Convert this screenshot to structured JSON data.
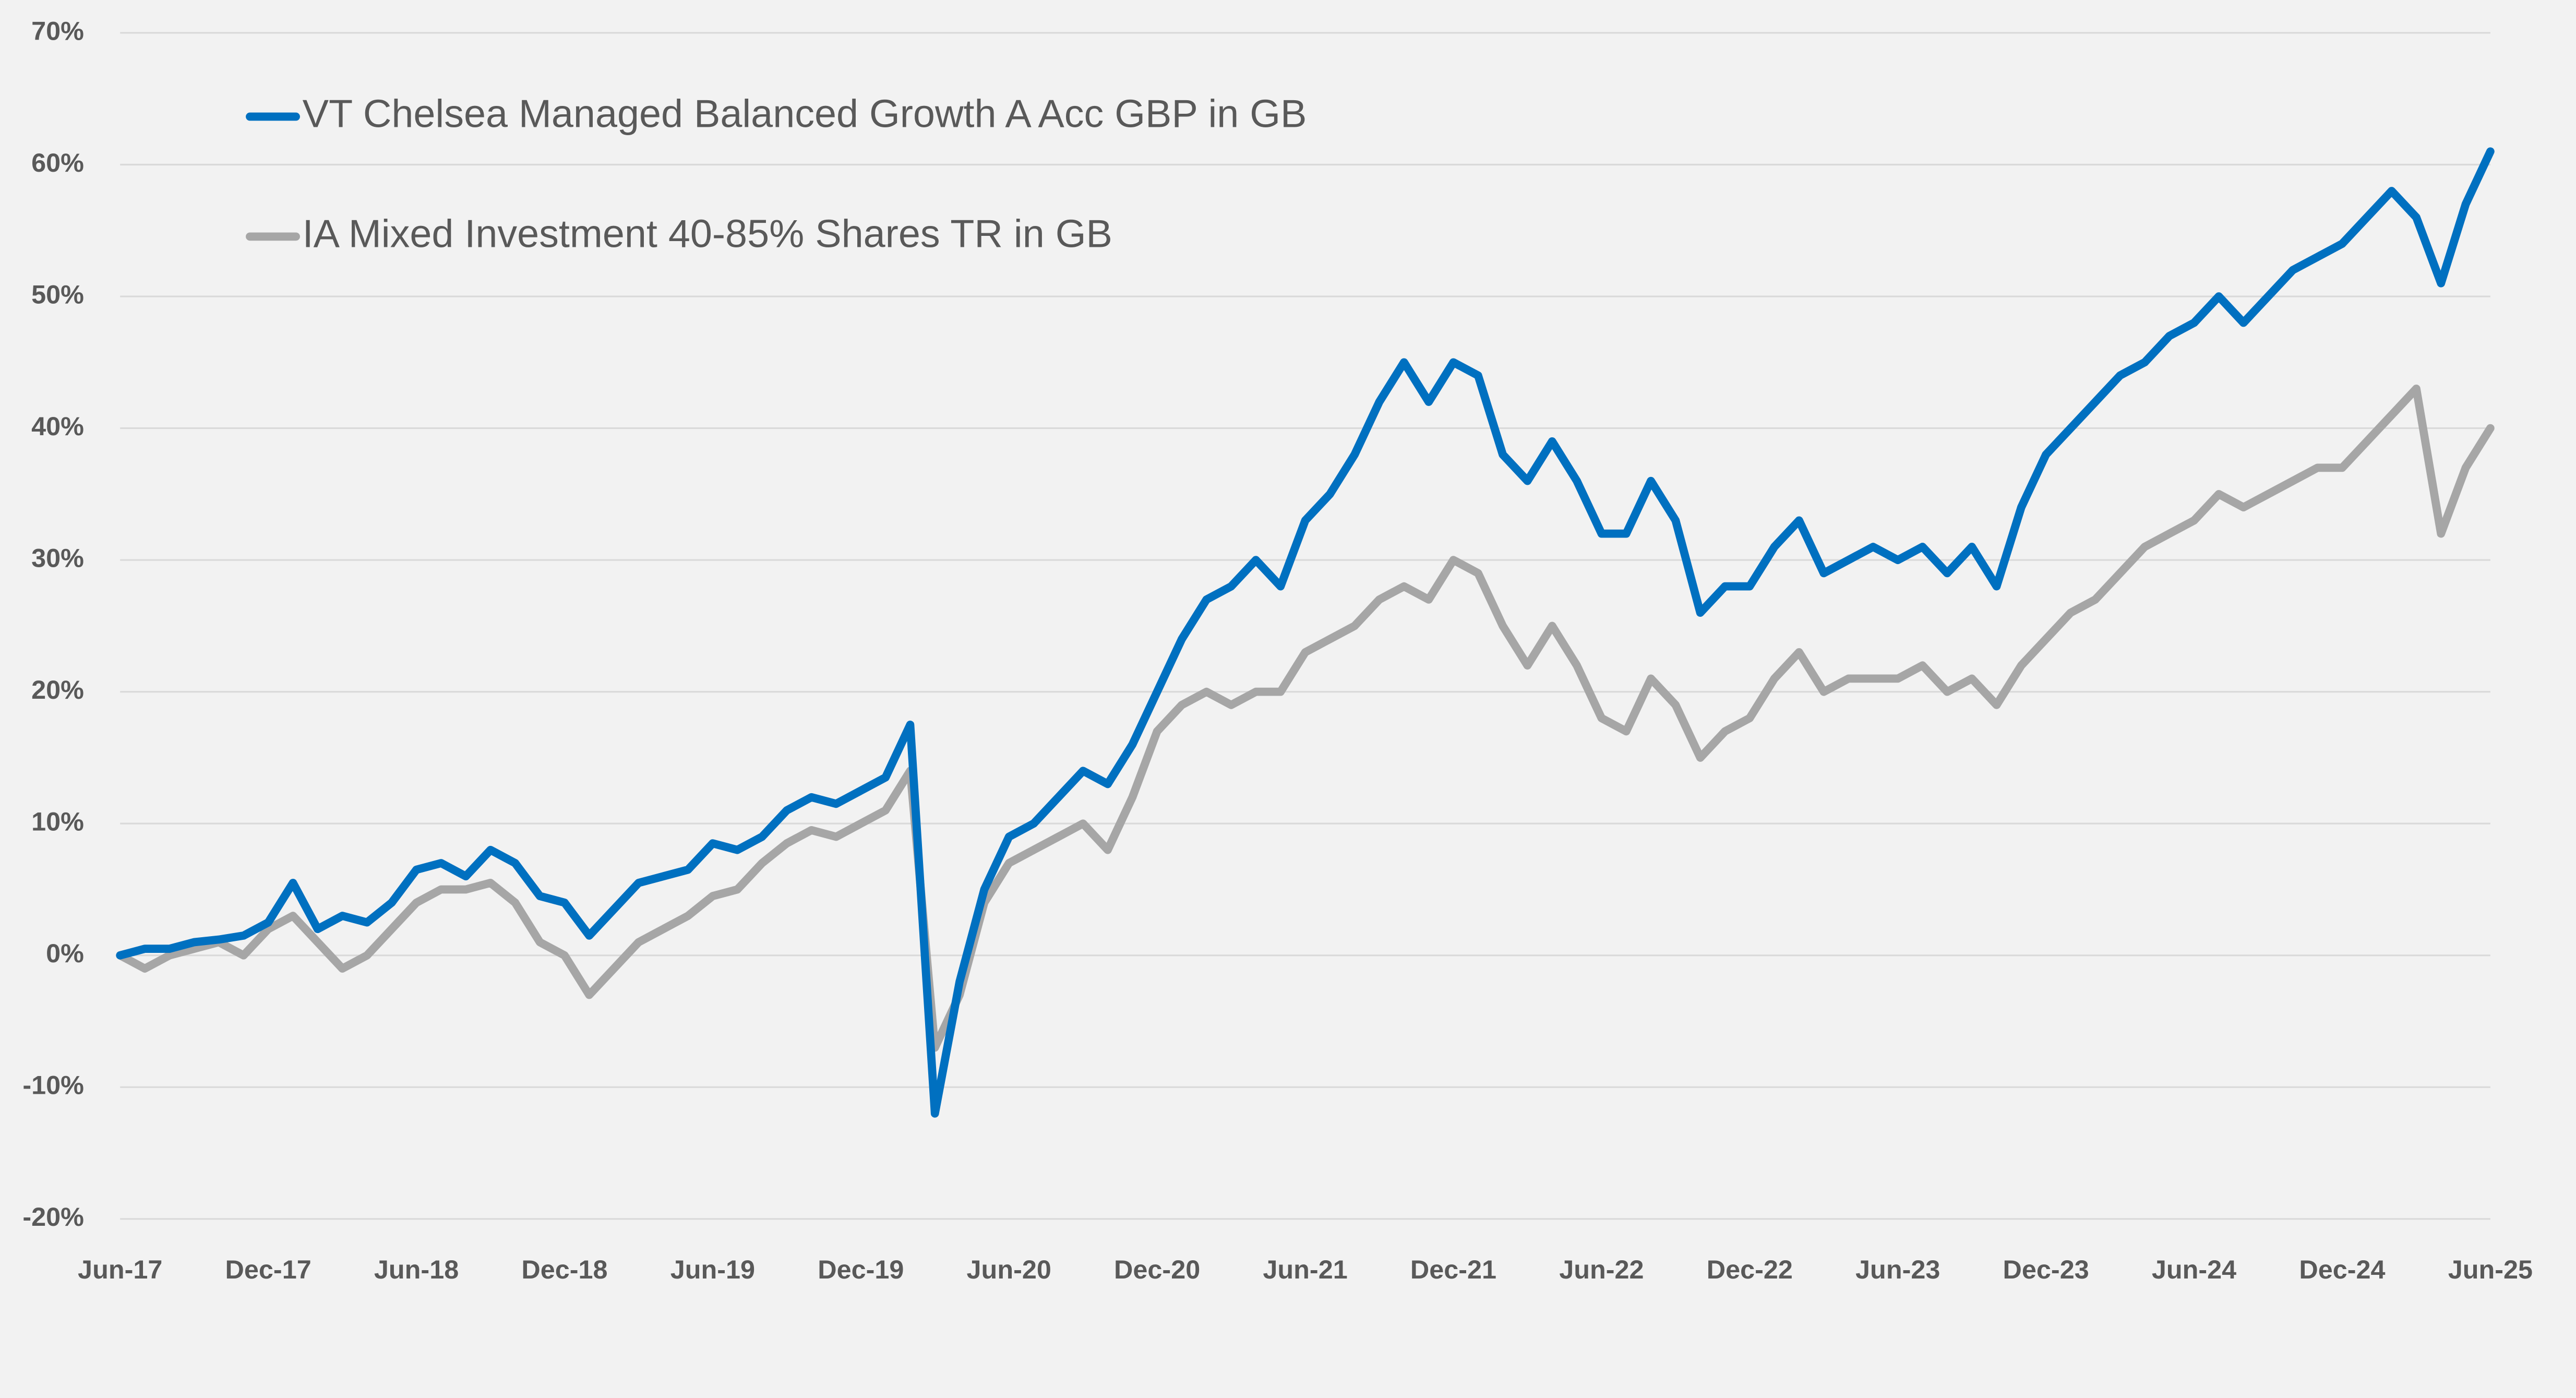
{
  "chart_data": {
    "type": "line",
    "categories": [
      "Jun-17",
      null,
      null,
      null,
      null,
      null,
      "Dec-17",
      null,
      null,
      null,
      null,
      null,
      "Jun-18",
      null,
      null,
      null,
      null,
      null,
      "Dec-18",
      null,
      null,
      null,
      null,
      null,
      "Jun-19",
      null,
      null,
      null,
      null,
      null,
      "Dec-19",
      null,
      null,
      null,
      null,
      null,
      "Jun-20",
      null,
      null,
      null,
      null,
      null,
      "Dec-20",
      null,
      null,
      null,
      null,
      null,
      "Jun-21",
      null,
      null,
      null,
      null,
      null,
      "Dec-21",
      null,
      null,
      null,
      null,
      null,
      "Jun-22",
      null,
      null,
      null,
      null,
      null,
      "Dec-22",
      null,
      null,
      null,
      null,
      null,
      "Jun-23",
      null,
      null,
      null,
      null,
      null,
      "Dec-23",
      null,
      null,
      null,
      null,
      null,
      "Jun-24",
      null,
      null,
      null,
      null,
      null,
      "Dec-24",
      null,
      null,
      null,
      null,
      null,
      "Jun-25"
    ],
    "series": [
      {
        "name": "VT Chelsea Managed Balanced Growth A Acc GBP in GB",
        "color": "#0070c0",
        "values": [
          0,
          0.5,
          0.5,
          1,
          1.2,
          1.5,
          2.5,
          5.5,
          2,
          3,
          2.5,
          4,
          6.5,
          7,
          6,
          8,
          7,
          4.5,
          4,
          1.5,
          3.5,
          5.5,
          6,
          6.5,
          8.5,
          8,
          9,
          11,
          12,
          11.5,
          12.5,
          13.5,
          17.5,
          -12,
          -2,
          5,
          9,
          10,
          12,
          14,
          13,
          16,
          20,
          24,
          27,
          28,
          30,
          28,
          33,
          35,
          38,
          42,
          45,
          42,
          45,
          44,
          38,
          36,
          39,
          36,
          32,
          32,
          36,
          33,
          26,
          28,
          28,
          31,
          33,
          29,
          30,
          31,
          30,
          31,
          29,
          31,
          28,
          34,
          38,
          40,
          42,
          44,
          45,
          47,
          48,
          50,
          48,
          50,
          52,
          53,
          54,
          56,
          58,
          56,
          51,
          57,
          61
        ]
      },
      {
        "name": "IA Mixed Investment 40-85% Shares TR in GB",
        "color": "#a6a6a6",
        "values": [
          0,
          -1,
          0,
          0.5,
          1,
          0,
          2,
          3,
          1,
          -1,
          0,
          2,
          4,
          5,
          5,
          5.5,
          4,
          1,
          0,
          -3,
          -1,
          1,
          2,
          3,
          4.5,
          5,
          7,
          8.5,
          9.5,
          9,
          10,
          11,
          14,
          -7,
          -3,
          4,
          7,
          8,
          9,
          10,
          8,
          12,
          17,
          19,
          20,
          19,
          20,
          20,
          23,
          24,
          25,
          27,
          28,
          27,
          30,
          29,
          25,
          22,
          25,
          22,
          18,
          17,
          21,
          19,
          15,
          17,
          18,
          21,
          23,
          20,
          21,
          21,
          21,
          22,
          20,
          21,
          19,
          22,
          24,
          26,
          27,
          29,
          31,
          32,
          33,
          35,
          34,
          35,
          36,
          37,
          37,
          39,
          41,
          43,
          32,
          37,
          40
        ]
      }
    ],
    "ylim": [
      -20,
      70
    ],
    "yticks": [
      {
        "value": -20,
        "label": "-20%"
      },
      {
        "value": -10,
        "label": "-10%"
      },
      {
        "value": 0,
        "label": "0%"
      },
      {
        "value": 10,
        "label": "10%"
      },
      {
        "value": 20,
        "label": "20%"
      },
      {
        "value": 30,
        "label": "30%"
      },
      {
        "value": 40,
        "label": "40%"
      },
      {
        "value": 50,
        "label": "50%"
      },
      {
        "value": 60,
        "label": "60%"
      },
      {
        "value": 70,
        "label": "70%"
      }
    ],
    "grid": true
  }
}
